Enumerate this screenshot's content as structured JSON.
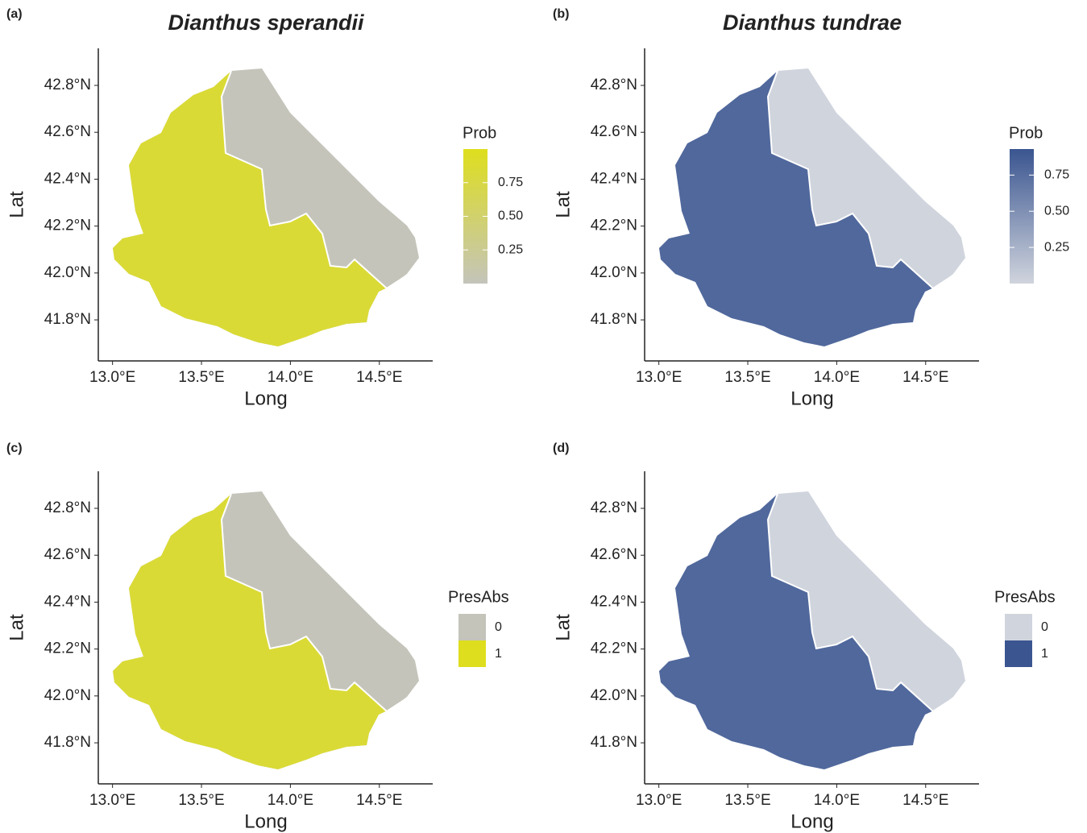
{
  "panels": [
    {
      "label": "(a)",
      "title": "Dianthus sperandii",
      "x_label": "Long",
      "y_label": "Lat",
      "xlim": [
        12.92,
        14.8
      ],
      "ylim": [
        41.625,
        42.958
      ],
      "xticks": [
        {
          "value": 13.0,
          "label": "13.0°E"
        },
        {
          "value": 13.5,
          "label": "13.5°E"
        },
        {
          "value": 14.0,
          "label": "14.0°E"
        },
        {
          "value": 14.5,
          "label": "14.5°E"
        }
      ],
      "yticks": [
        {
          "value": 41.8,
          "label": "41.8°N"
        },
        {
          "value": 42.0,
          "label": "42.0°N"
        },
        {
          "value": 42.2,
          "label": "42.2°N"
        },
        {
          "value": 42.4,
          "label": "42.4°N"
        },
        {
          "value": 42.6,
          "label": "42.6°N"
        },
        {
          "value": 42.8,
          "label": "42.8°N"
        }
      ],
      "legend": {
        "title": "Prob",
        "type": "gradient",
        "low_color": "#c4c4bb",
        "high_color": "#dede1e",
        "limits": [
          0,
          1
        ],
        "ticks": [
          {
            "value": 0.25,
            "label": "0.25"
          },
          {
            "value": 0.5,
            "label": "0.50"
          },
          {
            "value": 0.75,
            "label": "0.75"
          }
        ]
      }
    },
    {
      "label": "(b)",
      "title": "Dianthus tundrae",
      "x_label": "Long",
      "y_label": "Lat",
      "xlim": [
        12.92,
        14.8
      ],
      "ylim": [
        41.625,
        42.958
      ],
      "xticks": [
        {
          "value": 13.0,
          "label": "13.0°E"
        },
        {
          "value": 13.5,
          "label": "13.5°E"
        },
        {
          "value": 14.0,
          "label": "14.0°E"
        },
        {
          "value": 14.5,
          "label": "14.5°E"
        }
      ],
      "yticks": [
        {
          "value": 41.8,
          "label": "41.8°N"
        },
        {
          "value": 42.0,
          "label": "42.0°N"
        },
        {
          "value": 42.2,
          "label": "42.2°N"
        },
        {
          "value": 42.4,
          "label": "42.4°N"
        },
        {
          "value": 42.6,
          "label": "42.6°N"
        },
        {
          "value": 42.8,
          "label": "42.8°N"
        }
      ],
      "legend": {
        "title": "Prob",
        "type": "gradient",
        "low_color": "#d0d4dd",
        "high_color": "#3a5590",
        "limits": [
          0,
          0.93
        ],
        "ticks": [
          {
            "value": 0.25,
            "label": "0.25"
          },
          {
            "value": 0.5,
            "label": "0.50"
          },
          {
            "value": 0.75,
            "label": "0.75"
          }
        ]
      }
    },
    {
      "label": "(c)",
      "x_label": "Long",
      "y_label": "Lat",
      "xlim": [
        12.92,
        14.8
      ],
      "ylim": [
        41.625,
        42.958
      ],
      "xticks": [
        {
          "value": 13.0,
          "label": "13.0°E"
        },
        {
          "value": 13.5,
          "label": "13.5°E"
        },
        {
          "value": 14.0,
          "label": "14.0°E"
        },
        {
          "value": 14.5,
          "label": "14.5°E"
        }
      ],
      "yticks": [
        {
          "value": 41.8,
          "label": "41.8°N"
        },
        {
          "value": 42.0,
          "label": "42.0°N"
        },
        {
          "value": 42.2,
          "label": "42.2°N"
        },
        {
          "value": 42.4,
          "label": "42.4°N"
        },
        {
          "value": 42.6,
          "label": "42.6°N"
        },
        {
          "value": 42.8,
          "label": "42.8°N"
        }
      ],
      "legend": {
        "title": "PresAbs",
        "type": "discrete",
        "entries": [
          {
            "label": "0",
            "color": "#c4c4bb"
          },
          {
            "label": "1",
            "color": "#dede1e"
          }
        ]
      }
    },
    {
      "label": "(d)",
      "x_label": "Long",
      "y_label": "Lat",
      "xlim": [
        12.92,
        14.8
      ],
      "ylim": [
        41.625,
        42.958
      ],
      "xticks": [
        {
          "value": 13.0,
          "label": "13.0°E"
        },
        {
          "value": 13.5,
          "label": "13.5°E"
        },
        {
          "value": 14.0,
          "label": "14.0°E"
        },
        {
          "value": 14.5,
          "label": "14.5°E"
        }
      ],
      "yticks": [
        {
          "value": 41.8,
          "label": "41.8°N"
        },
        {
          "value": 42.0,
          "label": "42.0°N"
        },
        {
          "value": 42.2,
          "label": "42.2°N"
        },
        {
          "value": 42.4,
          "label": "42.4°N"
        },
        {
          "value": 42.6,
          "label": "42.6°N"
        },
        {
          "value": 42.8,
          "label": "42.8°N"
        }
      ],
      "legend": {
        "title": "PresAbs",
        "type": "discrete",
        "entries": [
          {
            "label": "0",
            "color": "#d0d4dd"
          },
          {
            "label": "1",
            "color": "#3a5590"
          }
        ]
      }
    }
  ]
}
